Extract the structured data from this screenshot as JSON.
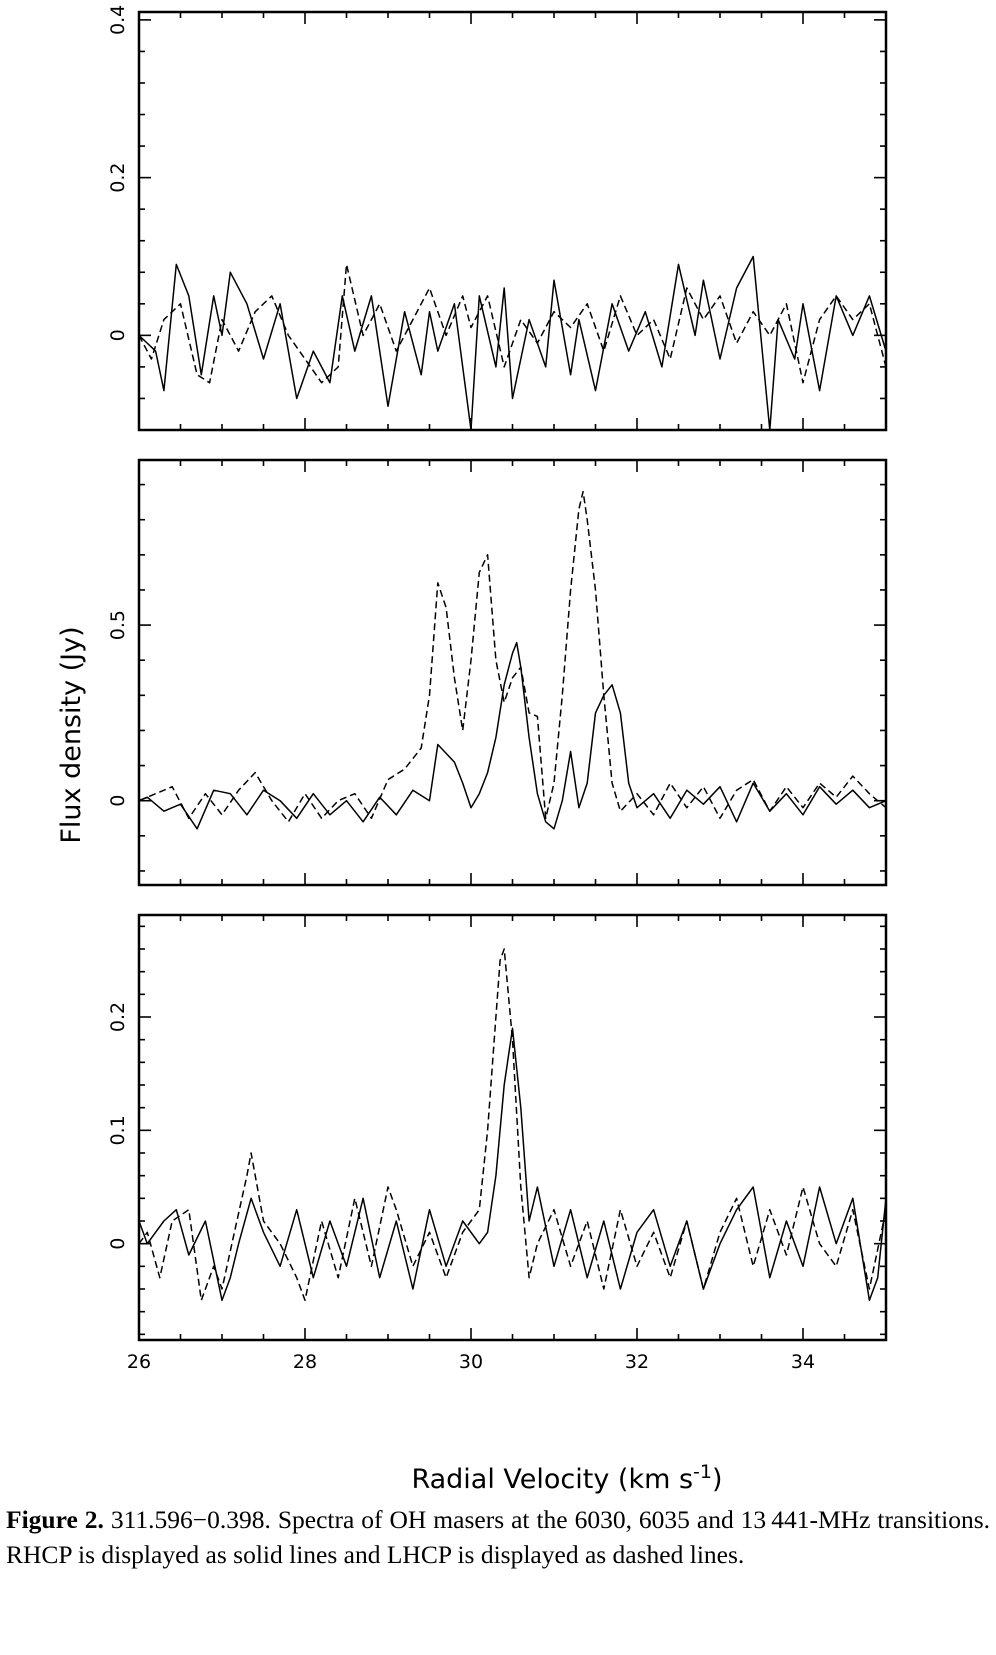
{
  "chart_data": [
    {
      "type": "line",
      "panel": "top",
      "xlim": [
        26,
        35
      ],
      "ylim": [
        -0.12,
        0.41
      ],
      "y_ticks": [
        "0",
        "0.2",
        "0.4"
      ],
      "series": [
        {
          "style": "solid",
          "x": [
            26.0,
            26.2,
            26.3,
            26.45,
            26.6,
            26.75,
            26.9,
            27.0,
            27.1,
            27.3,
            27.5,
            27.7,
            27.9,
            28.1,
            28.3,
            28.45,
            28.6,
            28.8,
            29.0,
            29.2,
            29.4,
            29.5,
            29.6,
            29.8,
            30.0,
            30.1,
            30.3,
            30.4,
            30.5,
            30.7,
            30.9,
            31.0,
            31.2,
            31.3,
            31.5,
            31.7,
            31.9,
            32.1,
            32.3,
            32.5,
            32.7,
            32.8,
            33.0,
            33.2,
            33.4,
            33.6,
            33.7,
            33.9,
            34.0,
            34.2,
            34.4,
            34.6,
            34.8,
            35.0
          ],
          "y": [
            0.0,
            -0.02,
            -0.07,
            0.09,
            0.05,
            -0.05,
            0.05,
            0.0,
            0.08,
            0.04,
            -0.03,
            0.04,
            -0.08,
            -0.02,
            -0.06,
            0.05,
            -0.02,
            0.05,
            -0.09,
            0.03,
            -0.05,
            0.03,
            -0.02,
            0.04,
            -0.12,
            0.05,
            -0.04,
            0.06,
            -0.08,
            0.02,
            -0.04,
            0.07,
            -0.05,
            0.02,
            -0.07,
            0.04,
            -0.02,
            0.03,
            -0.04,
            0.09,
            0.0,
            0.07,
            -0.03,
            0.06,
            0.1,
            -0.12,
            0.02,
            -0.03,
            0.04,
            -0.07,
            0.05,
            0.0,
            0.05,
            -0.02
          ]
        },
        {
          "style": "dashed",
          "x": [
            26.0,
            26.15,
            26.3,
            26.5,
            26.7,
            26.85,
            27.0,
            27.2,
            27.4,
            27.6,
            27.8,
            28.0,
            28.2,
            28.4,
            28.5,
            28.7,
            28.9,
            29.1,
            29.3,
            29.5,
            29.7,
            29.9,
            30.0,
            30.2,
            30.4,
            30.6,
            30.8,
            31.0,
            31.2,
            31.4,
            31.6,
            31.8,
            32.0,
            32.2,
            32.4,
            32.6,
            32.8,
            33.0,
            33.2,
            33.4,
            33.6,
            33.8,
            34.0,
            34.2,
            34.4,
            34.6,
            34.8,
            35.0
          ],
          "y": [
            0.0,
            -0.03,
            0.02,
            0.04,
            -0.05,
            -0.06,
            0.02,
            -0.02,
            0.03,
            0.05,
            0.0,
            -0.03,
            -0.06,
            -0.04,
            0.09,
            0.0,
            0.04,
            -0.02,
            0.02,
            0.06,
            0.0,
            0.05,
            0.01,
            0.05,
            -0.04,
            0.02,
            -0.01,
            0.03,
            0.01,
            0.04,
            -0.02,
            0.05,
            0.0,
            0.02,
            -0.03,
            0.06,
            0.02,
            0.05,
            -0.01,
            0.03,
            0.0,
            0.04,
            -0.06,
            0.02,
            0.05,
            0.02,
            0.04,
            -0.04
          ]
        }
      ]
    },
    {
      "type": "line",
      "panel": "middle",
      "xlim": [
        26,
        35
      ],
      "ylim": [
        -0.24,
        0.97
      ],
      "y_ticks": [
        "0",
        "0.5"
      ],
      "series": [
        {
          "style": "solid",
          "x": [
            26.0,
            26.1,
            26.3,
            26.5,
            26.7,
            26.9,
            27.1,
            27.3,
            27.5,
            27.7,
            27.9,
            28.1,
            28.3,
            28.5,
            28.7,
            28.9,
            29.1,
            29.3,
            29.5,
            29.6,
            29.8,
            29.9,
            30.0,
            30.1,
            30.2,
            30.3,
            30.4,
            30.5,
            30.55,
            30.6,
            30.7,
            30.8,
            30.9,
            31.0,
            31.1,
            31.2,
            31.3,
            31.4,
            31.5,
            31.6,
            31.7,
            31.8,
            31.9,
            32.0,
            32.2,
            32.4,
            32.6,
            32.8,
            33.0,
            33.2,
            33.4,
            33.6,
            33.8,
            34.0,
            34.2,
            34.4,
            34.6,
            34.8,
            35.0
          ],
          "y": [
            0.0,
            0.01,
            -0.03,
            -0.01,
            -0.08,
            0.03,
            0.02,
            -0.04,
            0.03,
            0.0,
            -0.05,
            0.02,
            -0.04,
            0.0,
            -0.06,
            0.01,
            -0.04,
            0.03,
            0.0,
            0.16,
            0.11,
            0.05,
            -0.02,
            0.02,
            0.08,
            0.18,
            0.33,
            0.42,
            0.45,
            0.38,
            0.18,
            0.02,
            -0.06,
            -0.08,
            0.0,
            0.14,
            -0.02,
            0.05,
            0.25,
            0.3,
            0.33,
            0.25,
            0.05,
            -0.02,
            0.02,
            -0.05,
            0.03,
            -0.01,
            0.04,
            -0.06,
            0.05,
            -0.03,
            0.02,
            -0.04,
            0.04,
            -0.01,
            0.03,
            -0.02,
            0.0
          ]
        },
        {
          "style": "dashed",
          "x": [
            26.0,
            26.2,
            26.4,
            26.6,
            26.8,
            27.0,
            27.2,
            27.4,
            27.6,
            27.8,
            28.0,
            28.2,
            28.4,
            28.6,
            28.8,
            29.0,
            29.2,
            29.4,
            29.5,
            29.6,
            29.7,
            29.8,
            29.9,
            30.0,
            30.1,
            30.2,
            30.3,
            30.4,
            30.5,
            30.6,
            30.7,
            30.8,
            30.9,
            31.0,
            31.1,
            31.2,
            31.3,
            31.35,
            31.4,
            31.5,
            31.6,
            31.7,
            31.8,
            32.0,
            32.2,
            32.4,
            32.6,
            32.8,
            33.0,
            33.2,
            33.4,
            33.6,
            33.8,
            34.0,
            34.2,
            34.4,
            34.6,
            34.8,
            35.0
          ],
          "y": [
            0.0,
            0.02,
            0.04,
            -0.05,
            0.02,
            -0.04,
            0.03,
            0.08,
            0.0,
            -0.06,
            0.02,
            -0.05,
            0.0,
            0.02,
            -0.05,
            0.06,
            0.09,
            0.15,
            0.3,
            0.62,
            0.55,
            0.35,
            0.2,
            0.4,
            0.65,
            0.7,
            0.4,
            0.28,
            0.35,
            0.38,
            0.25,
            0.24,
            -0.05,
            0.05,
            0.3,
            0.6,
            0.83,
            0.88,
            0.8,
            0.6,
            0.3,
            0.05,
            -0.03,
            0.02,
            -0.04,
            0.05,
            -0.02,
            0.04,
            -0.05,
            0.03,
            0.06,
            -0.03,
            0.04,
            -0.02,
            0.05,
            0.01,
            0.07,
            0.02,
            -0.02
          ]
        }
      ]
    },
    {
      "type": "line",
      "panel": "bottom",
      "xlim": [
        26,
        35
      ],
      "ylim": [
        -0.085,
        0.29
      ],
      "y_ticks": [
        "0",
        "0.1",
        "0.2"
      ],
      "xlabel": "Radial Velocity (km s-1)",
      "x_ticks": [
        "26",
        "28",
        "30",
        "32",
        "34"
      ],
      "series": [
        {
          "style": "solid",
          "x": [
            26.0,
            26.1,
            26.2,
            26.3,
            26.45,
            26.6,
            26.8,
            27.0,
            27.1,
            27.2,
            27.35,
            27.5,
            27.7,
            27.9,
            28.1,
            28.3,
            28.5,
            28.7,
            28.9,
            29.1,
            29.3,
            29.5,
            29.7,
            29.9,
            30.1,
            30.2,
            30.3,
            30.4,
            30.5,
            30.6,
            30.7,
            30.8,
            31.0,
            31.2,
            31.4,
            31.6,
            31.8,
            32.0,
            32.2,
            32.4,
            32.6,
            32.8,
            33.0,
            33.2,
            33.4,
            33.6,
            33.8,
            34.0,
            34.2,
            34.4,
            34.6,
            34.8,
            34.9,
            35.0
          ],
          "y": [
            0.02,
            0.0,
            0.01,
            0.02,
            0.03,
            -0.01,
            0.02,
            -0.05,
            -0.03,
            0.0,
            0.04,
            0.01,
            -0.02,
            0.03,
            -0.03,
            0.02,
            -0.02,
            0.04,
            -0.03,
            0.02,
            -0.04,
            0.03,
            -0.02,
            0.02,
            0.0,
            0.01,
            0.06,
            0.14,
            0.19,
            0.12,
            0.02,
            0.05,
            -0.02,
            0.03,
            -0.03,
            0.02,
            -0.04,
            0.01,
            0.03,
            -0.02,
            0.02,
            -0.04,
            0.0,
            0.03,
            0.05,
            -0.03,
            0.02,
            -0.02,
            0.05,
            0.0,
            0.04,
            -0.05,
            -0.03,
            0.04
          ]
        },
        {
          "style": "dashed",
          "x": [
            26.0,
            26.1,
            26.25,
            26.4,
            26.6,
            26.75,
            26.9,
            27.0,
            27.15,
            27.3,
            27.35,
            27.5,
            27.7,
            27.9,
            28.0,
            28.2,
            28.4,
            28.6,
            28.8,
            29.0,
            29.1,
            29.3,
            29.5,
            29.7,
            29.9,
            30.1,
            30.2,
            30.3,
            30.35,
            30.4,
            30.5,
            30.6,
            30.7,
            30.8,
            31.0,
            31.2,
            31.4,
            31.6,
            31.8,
            32.0,
            32.2,
            32.4,
            32.6,
            32.8,
            33.0,
            33.2,
            33.4,
            33.6,
            33.8,
            34.0,
            34.2,
            34.4,
            34.6,
            34.8,
            35.0
          ],
          "y": [
            0.0,
            0.01,
            -0.03,
            0.02,
            0.03,
            -0.05,
            -0.02,
            -0.04,
            0.01,
            0.06,
            0.08,
            0.02,
            0.0,
            -0.03,
            -0.05,
            0.02,
            -0.03,
            0.04,
            -0.02,
            0.05,
            0.03,
            -0.02,
            0.01,
            -0.03,
            0.01,
            0.03,
            0.1,
            0.2,
            0.25,
            0.26,
            0.18,
            0.05,
            -0.03,
            0.0,
            0.03,
            -0.02,
            0.02,
            -0.04,
            0.03,
            -0.02,
            0.01,
            -0.03,
            0.02,
            -0.04,
            0.01,
            0.04,
            -0.02,
            0.03,
            -0.01,
            0.05,
            0.0,
            -0.02,
            0.03,
            -0.04,
            0.03
          ]
        }
      ]
    }
  ],
  "ylabel": "Flux density (Jy)",
  "caption": {
    "fig_num": "Figure 2.",
    "text": "  311.596−0.398. Spectra of OH masers at the 6030, 6035 and 13 441-MHz transitions. RHCP is displayed as solid lines and LHCP is displayed as dashed lines."
  }
}
